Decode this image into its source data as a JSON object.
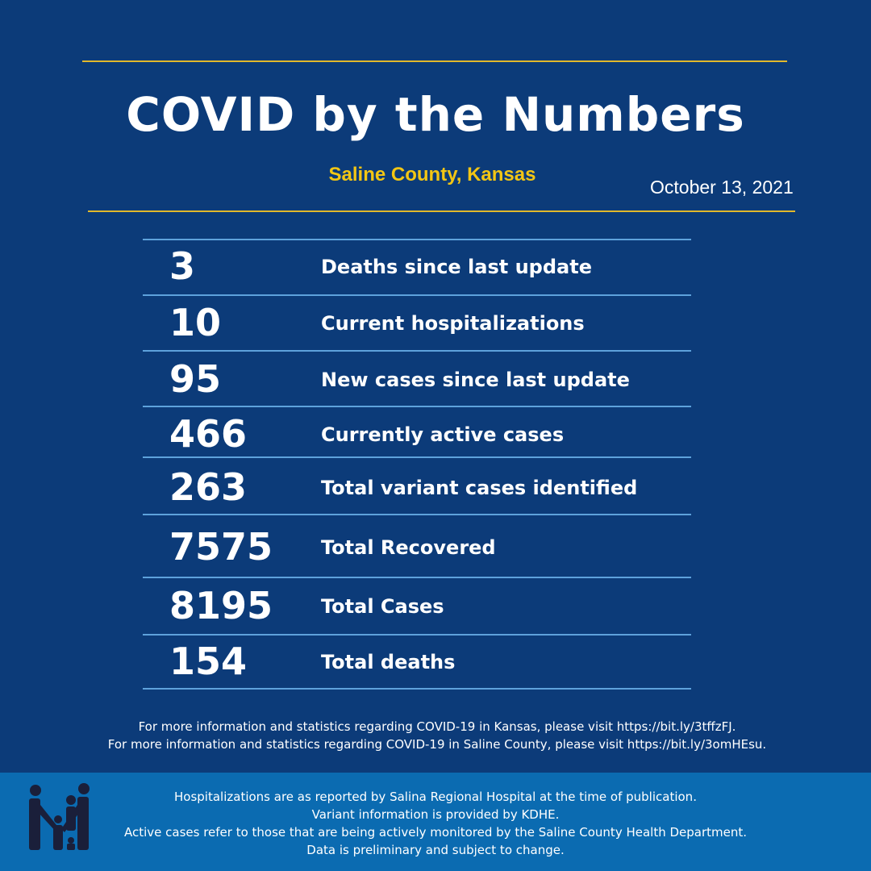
{
  "header": {
    "title": "COVID by the Numbers",
    "subtitle": "Saline County, Kansas",
    "date": "October 13, 2021"
  },
  "rows": [
    {
      "value": 3,
      "label": "Deaths since last update"
    },
    {
      "value": 10,
      "label": "Current hospitalizations"
    },
    {
      "value": 95,
      "label": "New cases since last update"
    },
    {
      "value": 466,
      "label": "Currently active cases"
    },
    {
      "value": 263,
      "label": "Total variant cases identified"
    },
    {
      "value": 7575,
      "label": "Total Recovered"
    },
    {
      "value": 8195,
      "label": "Total Cases"
    },
    {
      "value": 154,
      "label": "Total deaths"
    }
  ],
  "links": [
    "For more information and statistics regarding COVID-19 in Kansas, please visit https://bit.ly/3tffzFJ.",
    "For more information and statistics regarding COVID-19 in Saline County, please visit  https://bit.ly/3omHEsu."
  ],
  "notes": [
    "Hospitalizations are as reported by Salina Regional Hospital at the time of publication.",
    "Variant information is provided by KDHE.",
    "Active cases refer to those that are being actively monitored by the Saline County Health Department.",
    "Data is preliminary and subject to change."
  ]
}
